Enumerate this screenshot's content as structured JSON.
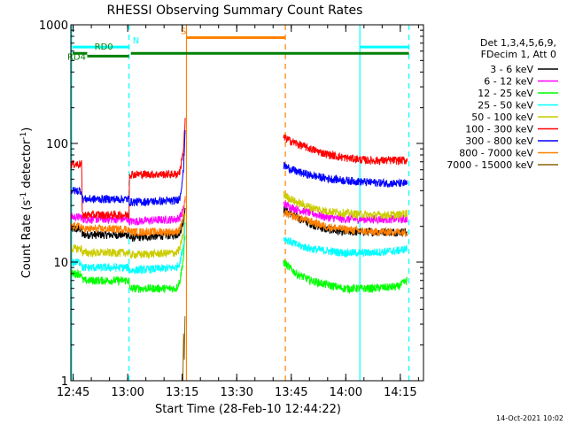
{
  "chart_data": {
    "type": "line",
    "title": "RHESSI Observing Summary Count Rates",
    "xlabel": "Start Time (28-Feb-10 12:44:22)",
    "ylabel_main": "Count Rate (s",
    "ylabel_exp": "-1",
    "ylabel_mid": " detector",
    "ylabel_end": ")",
    "x_unit": "minutes after 12:44:22",
    "xlim": [
      0,
      97
    ],
    "ylim": [
      1,
      1000
    ],
    "yscale": "log",
    "x_ticks": [
      {
        "minute": 0.63,
        "label": "12:45"
      },
      {
        "minute": 15.63,
        "label": "13:00"
      },
      {
        "minute": 30.63,
        "label": "13:15"
      },
      {
        "minute": 45.63,
        "label": "13:30"
      },
      {
        "minute": 60.63,
        "label": "13:45"
      },
      {
        "minute": 75.63,
        "label": "14:00"
      },
      {
        "minute": 90.63,
        "label": "14:15"
      }
    ],
    "y_ticks": [
      {
        "value": 1,
        "label": "1"
      },
      {
        "value": 10,
        "label": "10"
      },
      {
        "value": 100,
        "label": "100"
      },
      {
        "value": 1000,
        "label": "1000"
      }
    ],
    "legend_header": [
      "Det 1,3,4,5,6,9,",
      "FDecim 1, Att 0"
    ],
    "series": [
      {
        "name": "3 - 6 keV",
        "color": "#000000",
        "segments": [
          {
            "x": [
              0,
              3,
              3.1,
              16,
              16.1,
              29,
              30,
              31,
              31.5
            ],
            "y": [
              19,
              19,
              17,
              17,
              16,
              17,
              18,
              22,
              30
            ]
          },
          {
            "x": [
              58.5,
              62,
              66,
              70,
              75,
              82,
              90,
              92.5
            ],
            "y": [
              28,
              24,
              21,
              19,
              18,
              18,
              18,
              18
            ]
          }
        ]
      },
      {
        "name": "6 - 12 keV",
        "color": "#ff00ff",
        "segments": [
          {
            "x": [
              0,
              3,
              3.1,
              16,
              16.1,
              29,
              30,
              31,
              31.5
            ],
            "y": [
              24,
              24,
              23,
              23,
              22,
              23,
              24,
              28,
              35
            ]
          },
          {
            "x": [
              58.5,
              62,
              66,
              70,
              75,
              82,
              90,
              92.5
            ],
            "y": [
              31,
              28,
              26,
              24,
              23,
              23,
              23,
              23
            ]
          }
        ]
      },
      {
        "name": "12 - 25 keV",
        "color": "#00ff00",
        "segments": [
          {
            "x": [
              0,
              3,
              3.1,
              16,
              16.1,
              29,
              30,
              31,
              31.5
            ],
            "y": [
              8,
              8,
              7,
              7,
              6,
              6,
              7,
              11,
              18
            ]
          },
          {
            "x": [
              58.5,
              62,
              66,
              70,
              75,
              82,
              90,
              92.5
            ],
            "y": [
              10,
              8,
              7,
              6.5,
              6,
              6,
              6.2,
              7
            ]
          }
        ]
      },
      {
        "name": "25 - 50 keV",
        "color": "#00ffff",
        "segments": [
          {
            "x": [
              0,
              3,
              3.1,
              16,
              16.1,
              29,
              30,
              31,
              31.5
            ],
            "y": [
              10,
              10,
              9,
              9,
              8.5,
              9,
              10,
              14,
              22
            ]
          },
          {
            "x": [
              58.5,
              62,
              66,
              70,
              75,
              82,
              90,
              92.5
            ],
            "y": [
              16,
              14,
              13,
              12.5,
              12,
              12,
              12.5,
              13
            ]
          }
        ]
      },
      {
        "name": "50 - 100 keV",
        "color": "#cccc00",
        "segments": [
          {
            "x": [
              0,
              3,
              3.1,
              16,
              16.1,
              29,
              30,
              31,
              31.5
            ],
            "y": [
              13,
              13,
              12,
              12,
              11.5,
              12,
              13,
              18,
              28
            ]
          },
          {
            "x": [
              58.5,
              62,
              66,
              70,
              75,
              82,
              90,
              92.5
            ],
            "y": [
              37,
              32,
              29,
              27,
              26,
              25,
              25,
              26
            ]
          }
        ]
      },
      {
        "name": "100 - 300 keV",
        "color": "#ff0000",
        "segments": [
          {
            "x": [
              0,
              3,
              3.1,
              16,
              16.1,
              29,
              30,
              31,
              31.5
            ],
            "y": [
              67,
              67,
              25,
              25,
              55,
              55,
              58,
              90,
              170
            ]
          },
          {
            "x": [
              58.5,
              62,
              66,
              70,
              75,
              82,
              90,
              92.5
            ],
            "y": [
              112,
              100,
              90,
              82,
              76,
              72,
              72,
              72
            ]
          }
        ]
      },
      {
        "name": "300 - 800 keV",
        "color": "#0000ff",
        "segments": [
          {
            "x": [
              0,
              3,
              3.1,
              16,
              16.1,
              29,
              30,
              31,
              31.5
            ],
            "y": [
              40,
              40,
              34,
              34,
              32,
              33,
              35,
              60,
              150
            ]
          },
          {
            "x": [
              58.5,
              62,
              66,
              70,
              75,
              82,
              90,
              92.5
            ],
            "y": [
              65,
              58,
              54,
              51,
              49,
              47,
              46,
              46
            ]
          }
        ]
      },
      {
        "name": "800 - 7000 keV",
        "color": "#ff8000",
        "segments": [
          {
            "x": [
              0,
              3,
              3.1,
              16,
              16.1,
              29,
              30,
              31,
              31.5
            ],
            "y": [
              20,
              20,
              19,
              19,
              18,
              18,
              19,
              25,
              35
            ]
          },
          {
            "x": [
              58.5,
              62,
              66,
              70,
              75,
              82,
              90,
              92.5
            ],
            "y": [
              26,
              24,
              22,
              20,
              19,
              18,
              18,
              18
            ]
          }
        ]
      },
      {
        "name": "7000 - 15000 keV",
        "color": "#8b6508",
        "segments": [
          {
            "x": [
              30.8,
              31,
              31.2,
              31.4
            ],
            "y": [
              1,
              2.5,
              1.5,
              3.5
            ]
          }
        ]
      }
    ],
    "vertical_markers": [
      {
        "minute": 0.2,
        "color": "#00ffff",
        "style": "solid"
      },
      {
        "minute": 16,
        "color": "#00ffff",
        "style": "dashed"
      },
      {
        "minute": 31.8,
        "color": "#ff8000",
        "style": "solid"
      },
      {
        "minute": 59,
        "color": "#ff8000",
        "style": "dashed"
      },
      {
        "minute": 79.5,
        "color": "#00ffff",
        "style": "solid"
      },
      {
        "minute": 93,
        "color": "#00ffff",
        "style": "dashed"
      }
    ],
    "state_bars": [
      {
        "label": "N",
        "color": "#00ffff",
        "level": 650,
        "ranges": [
          [
            0.5,
            16
          ],
          [
            79.5,
            93
          ]
        ],
        "label_at": 17
      },
      {
        "label": "S",
        "color": "#ff8000",
        "level": 780,
        "ranges": [
          [
            31.8,
            59
          ]
        ],
        "label_at": 30.2
      },
      {
        "label": "RD0",
        "color": "#008000",
        "level": 575,
        "ranges": [
          [
            0.5,
            4.5
          ]
        ],
        "label_at": 6.5
      },
      {
        "label": "RD4",
        "color": "#008000",
        "level": 545,
        "ranges": [
          [
            4.5,
            16
          ]
        ],
        "label_at": -1
      },
      {
        "label": "",
        "color": "#008000",
        "level": 575,
        "ranges": [
          [
            16.5,
            93
          ]
        ],
        "label_at": 0
      }
    ],
    "grid": false,
    "legend_position": "right"
  },
  "footer": {
    "timestamp": "14-Oct-2021 10:02"
  }
}
